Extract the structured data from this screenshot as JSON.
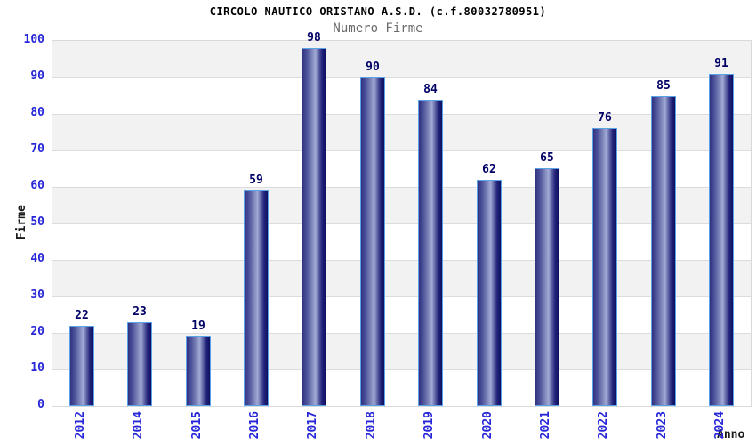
{
  "header": {
    "title": "CIRCOLO NAUTICO ORISTANO A.S.D. (c.f.80032780951)",
    "subtitle": "Numero Firme"
  },
  "chart_data": {
    "type": "bar",
    "categories": [
      "2012",
      "2014",
      "2015",
      "2016",
      "2017",
      "2018",
      "2019",
      "2020",
      "2021",
      "2022",
      "2023",
      "2024"
    ],
    "values": [
      22,
      23,
      19,
      59,
      98,
      90,
      84,
      62,
      65,
      76,
      85,
      91
    ],
    "title": "CIRCOLO NAUTICO ORISTANO A.S.D. (c.f.80032780951)",
    "subtitle": "Numero Firme",
    "xlabel": "Anno",
    "ylabel": "Firme",
    "ylim": [
      0,
      100
    ],
    "ytick_step": 10,
    "ytick_labels": [
      "0",
      "10",
      "20",
      "30",
      "40",
      "50",
      "60",
      "70",
      "80",
      "90",
      "100"
    ],
    "grid": "horizontal gridlines with alternating grey/white bands",
    "legend_position": "none",
    "bar_value_labels_shown": true,
    "x_tick_rotation_degrees": 90
  },
  "colors": {
    "background": "#ffffff",
    "title_text": "#000000",
    "subtitle_text": "#6b6b6b",
    "tick_label_blue": "#2626d8",
    "bar_value_navy": "#000066",
    "axis_title_text": "#1a1a1a",
    "bar_dark_edge": "#101060",
    "bar_light_center": "#a2aad6",
    "bar_border_light_blue": "#5aa2e8",
    "band_grey": "#f2f2f2",
    "band_white": "#ffffff",
    "gridline": "#dcdcdc",
    "plot_border": "#d9d9d9"
  }
}
